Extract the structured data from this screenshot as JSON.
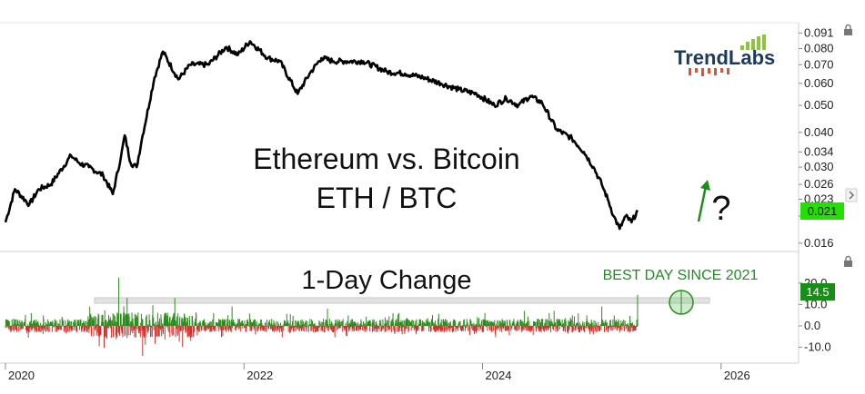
{
  "chart_data": [
    {
      "type": "line",
      "title": "Ethereum vs. Bitcoin",
      "subtitle": "ETH / BTC",
      "scale": "log",
      "ylim": [
        0.0155,
        0.094
      ],
      "yticks": [
        "0.091",
        "0.080",
        "0.070",
        "0.060",
        "0.050",
        "0.040",
        "0.034",
        "0.030",
        "0.026",
        "0.023",
        "0.020",
        "0.016"
      ],
      "ytick_values": [
        0.091,
        0.08,
        0.07,
        0.06,
        0.05,
        0.04,
        0.034,
        0.03,
        0.026,
        0.023,
        0.02,
        0.016
      ],
      "last_value_label": "0.021",
      "series": [
        {
          "x": [
            2020.0,
            2020.08,
            2020.2,
            2020.28,
            2020.38,
            2020.55,
            2020.62,
            2020.7,
            2020.82,
            2020.9,
            2020.97,
            2021.0,
            2021.05,
            2021.1,
            2021.15,
            2021.25,
            2021.32,
            2021.45,
            2021.55,
            2021.7,
            2021.85,
            2021.95,
            2022.05,
            2022.2,
            2022.3,
            2022.45,
            2022.55,
            2022.65,
            2022.75,
            2022.85,
            2023.0,
            2023.2,
            2023.35,
            2023.5,
            2023.65,
            2023.8,
            2023.95,
            2024.1,
            2024.2,
            2024.3,
            2024.4,
            2024.5,
            2024.62,
            2024.75,
            2024.85,
            2024.93,
            2025.0,
            2025.05,
            2025.1,
            2025.15,
            2025.2,
            2025.25,
            2025.3
          ],
          "values": [
            0.019,
            0.025,
            0.022,
            0.025,
            0.026,
            0.033,
            0.031,
            0.03,
            0.028,
            0.024,
            0.033,
            0.039,
            0.031,
            0.03,
            0.039,
            0.063,
            0.078,
            0.062,
            0.07,
            0.07,
            0.081,
            0.076,
            0.085,
            0.074,
            0.072,
            0.055,
            0.065,
            0.074,
            0.072,
            0.072,
            0.072,
            0.066,
            0.065,
            0.063,
            0.06,
            0.057,
            0.055,
            0.05,
            0.053,
            0.05,
            0.054,
            0.051,
            0.041,
            0.038,
            0.034,
            0.03,
            0.026,
            0.023,
            0.02,
            0.018,
            0.02,
            0.019,
            0.021
          ]
        }
      ]
    },
    {
      "type": "bar",
      "title": "1-Day Change",
      "annotation": "BEST DAY SINCE 2021",
      "ylim": [
        -14,
        25
      ],
      "yticks": [
        "20.0",
        "10.0",
        "0.0",
        "-10.0"
      ],
      "ytick_values": [
        20,
        10,
        0,
        -10
      ],
      "last_value_label": "14.5",
      "reference_level": 12,
      "notable_days": {
        "x": [
          2020.85,
          2020.95,
          2021.02,
          2021.15,
          2021.42,
          2021.9,
          2022.7,
          2023.3,
          2024.02,
          2024.35,
          2024.6,
          2025.0,
          2025.3
        ],
        "values": [
          -6,
          22.5,
          13,
          -14,
          13,
          9,
          8,
          6,
          6,
          7,
          7,
          9,
          14.5
        ]
      },
      "colors": {
        "positive": "#2e8b1f",
        "negative": "#d0302a"
      }
    }
  ],
  "x_axis": {
    "ticks": [
      "2020",
      "2022",
      "2024",
      "2026"
    ],
    "tick_values": [
      2020,
      2022,
      2024,
      2026
    ],
    "range": [
      2020,
      2026.65
    ]
  },
  "annotations": {
    "arrow_glyph": "↑",
    "question_glyph": "?"
  },
  "brand": {
    "name": "TrendLabs",
    "text_color": "#1c3b5a",
    "accent": "#e6512d",
    "bars_color": "#8cc63f"
  },
  "colors": {
    "price_line": "#000000",
    "last_price_bg": "#22e000",
    "last_change_bg": "#1a8c1a",
    "annotation_green": "#1f8c1f"
  },
  "icons": [
    "lock-icon",
    "lock-icon",
    "chevron-right-icon"
  ]
}
